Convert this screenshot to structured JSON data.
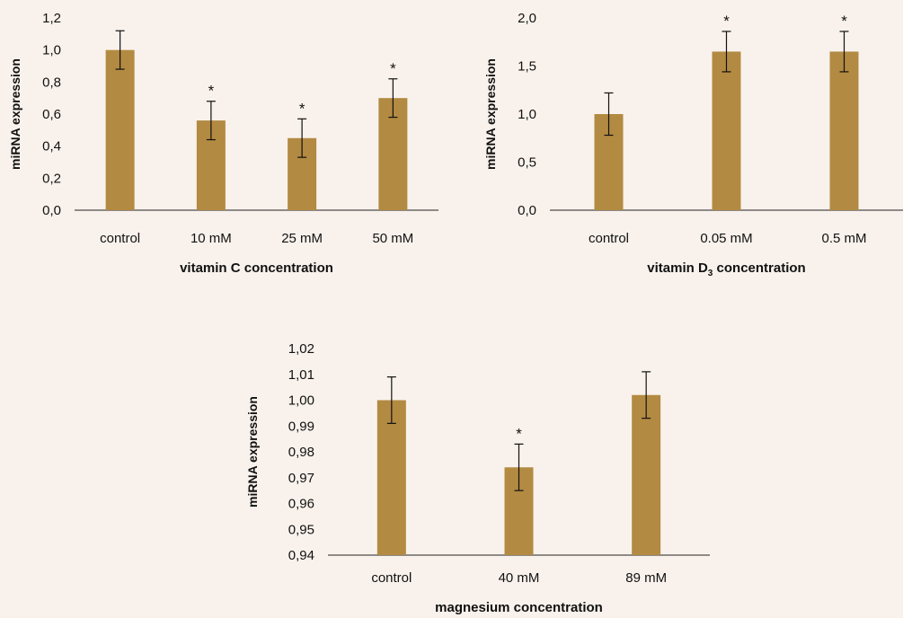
{
  "style": {
    "bar_color": "#b38a42",
    "background": "#f9f2ec",
    "axis_color": "#222222"
  },
  "chart_data": [
    {
      "type": "bar",
      "categories": [
        "control",
        "10 mM",
        "25 mM",
        "50 mM"
      ],
      "values": [
        1.0,
        0.56,
        0.45,
        0.7
      ],
      "errors": [
        0.12,
        0.12,
        0.12,
        0.12
      ],
      "significant": [
        false,
        true,
        true,
        true
      ],
      "significance_mark": "*",
      "ylabel": "miRNA expression",
      "xlabel_parts": [
        {
          "text": "vitamin C concentration"
        }
      ],
      "ylim": [
        0,
        1.2
      ],
      "yticks": [
        0,
        0.2,
        0.4,
        0.6,
        0.8,
        1.0,
        1.2
      ],
      "ytick_labels": [
        "0,0",
        "0,2",
        "0,4",
        "0,6",
        "0,8",
        "1,0",
        "1,2"
      ],
      "grid": false
    },
    {
      "type": "bar",
      "categories": [
        "control",
        "0.05 mM",
        "0.5 mM"
      ],
      "values": [
        1.0,
        1.65,
        1.65
      ],
      "errors": [
        0.22,
        0.21,
        0.21
      ],
      "significant": [
        false,
        true,
        true
      ],
      "significance_mark": "*",
      "ylabel": "miRNA expression",
      "xlabel_parts": [
        {
          "text": "vitamin D"
        },
        {
          "text": "3",
          "sub": true
        },
        {
          "text": " concentration"
        }
      ],
      "ylim": [
        0,
        2.0
      ],
      "yticks": [
        0,
        0.5,
        1.0,
        1.5,
        2.0
      ],
      "ytick_labels": [
        "0,0",
        "0,5",
        "1,0",
        "1,5",
        "2,0"
      ],
      "grid": false
    },
    {
      "type": "bar",
      "categories": [
        "control",
        "40 mM",
        "89 mM"
      ],
      "values": [
        1.0,
        0.974,
        1.002
      ],
      "errors": [
        0.009,
        0.009,
        0.009
      ],
      "significant": [
        false,
        true,
        false
      ],
      "significance_mark": "*",
      "ylabel": "miRNA expression",
      "xlabel_parts": [
        {
          "text": "magnesium concentration"
        }
      ],
      "ylim": [
        0.94,
        1.02
      ],
      "yticks": [
        0.94,
        0.95,
        0.96,
        0.97,
        0.98,
        0.99,
        1.0,
        1.01,
        1.02
      ],
      "ytick_labels": [
        "0,94",
        "0,95",
        "0,96",
        "0,97",
        "0,98",
        "0,99",
        "1,00",
        "1,01",
        "1,02"
      ],
      "grid": false
    }
  ]
}
